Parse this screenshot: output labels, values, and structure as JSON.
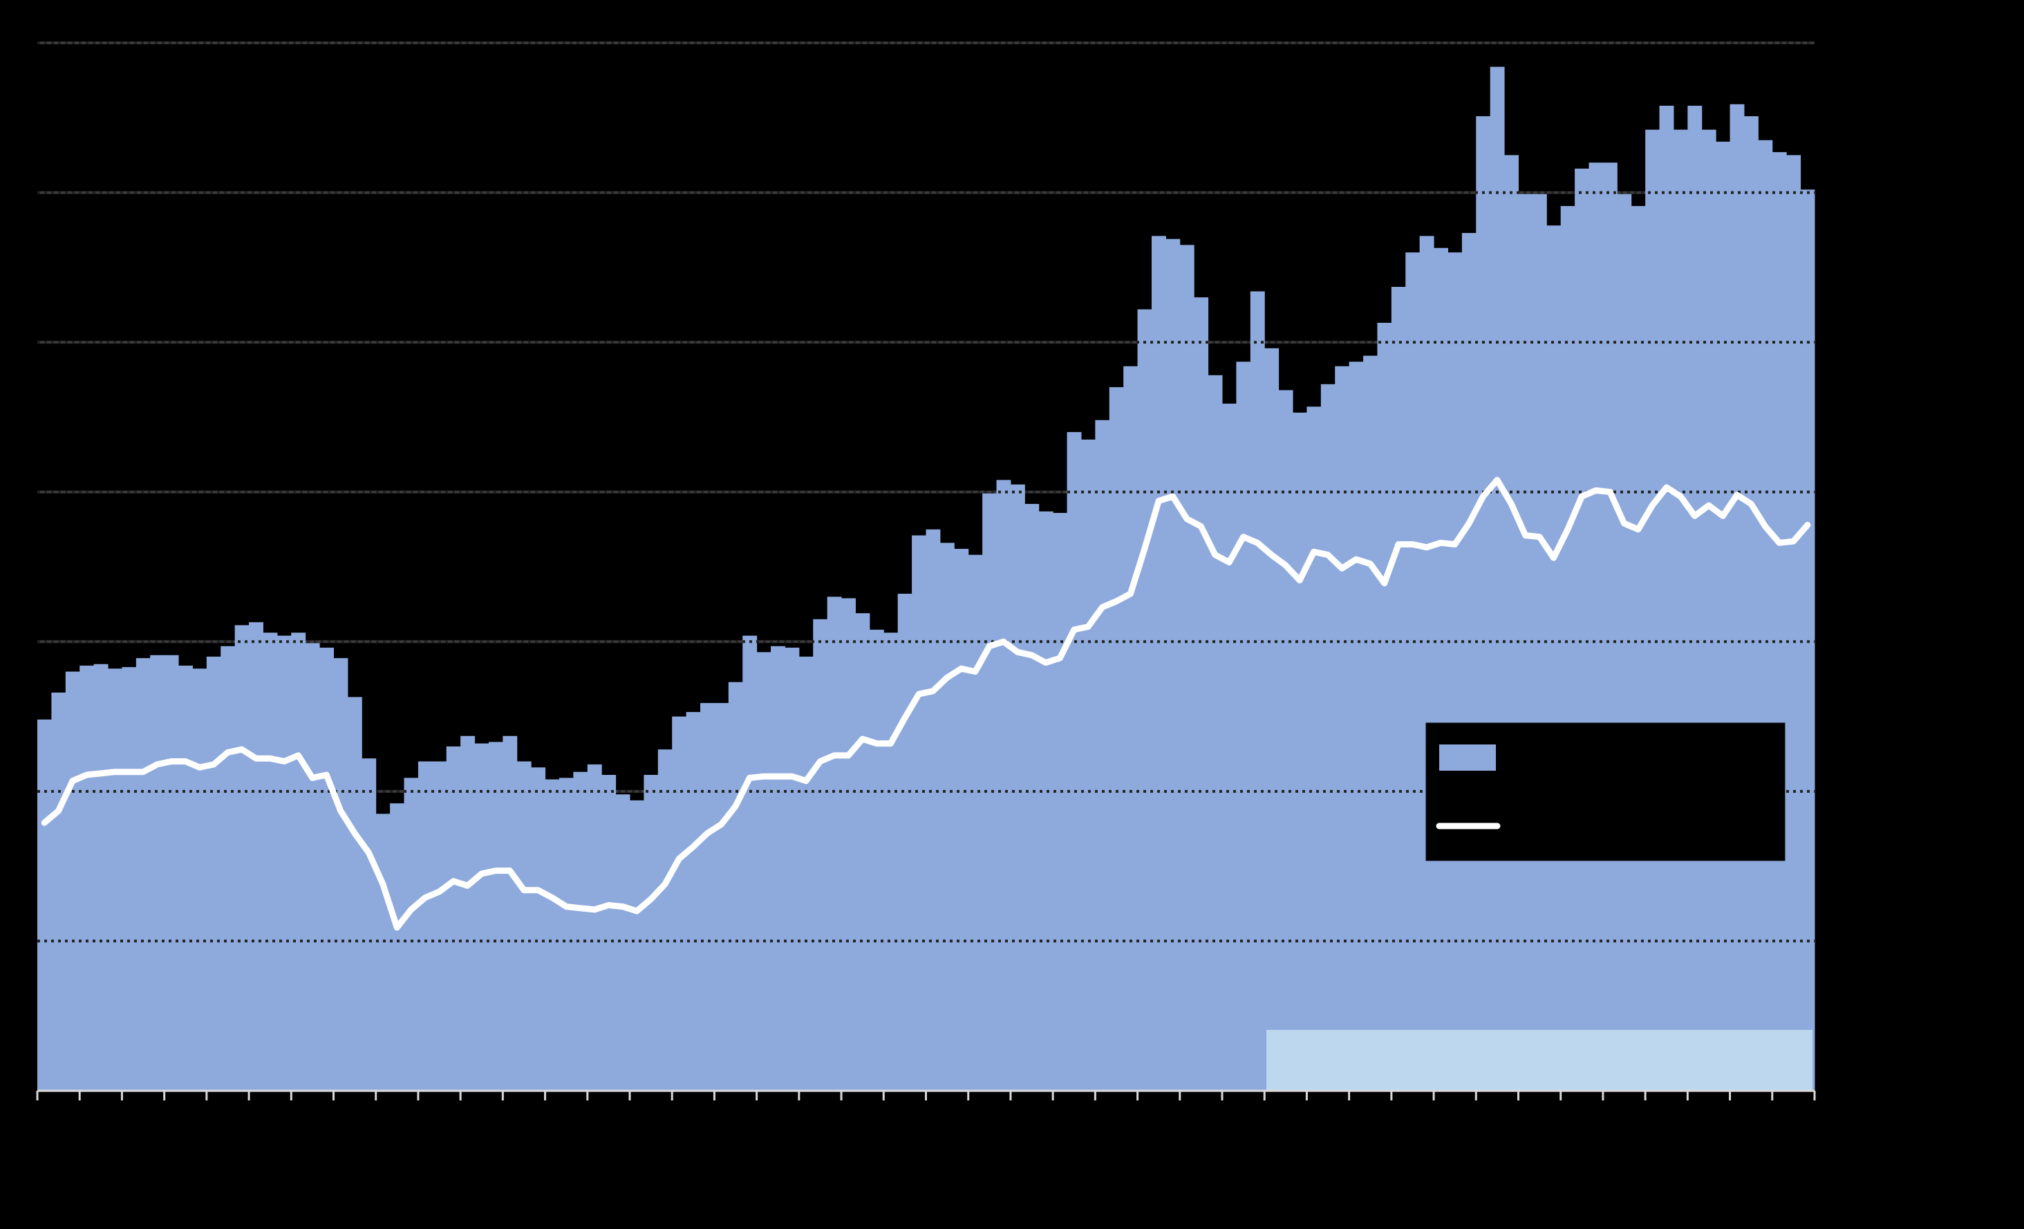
{
  "chart_data": {
    "type": "bar",
    "categories": [
      null,
      null,
      null,
      null,
      null,
      null,
      null,
      null,
      null,
      null,
      null,
      null,
      null,
      null,
      null,
      null,
      null,
      null,
      null,
      null,
      null,
      null,
      null,
      null,
      null,
      null,
      null,
      null,
      null,
      null,
      null,
      null,
      null,
      null,
      null,
      null,
      null,
      null,
      null,
      null,
      null,
      null,
      null,
      null,
      null,
      null,
      null,
      null,
      null,
      null,
      null,
      null,
      null,
      null,
      null,
      null,
      null,
      null,
      null,
      null,
      null,
      null,
      null,
      null,
      null,
      null,
      null,
      null,
      null,
      null,
      null,
      null,
      null,
      null,
      null,
      null,
      null,
      null,
      null,
      null,
      null,
      null,
      null,
      null,
      null,
      null,
      null,
      null,
      null,
      null,
      null,
      null,
      null,
      null,
      null,
      null,
      null,
      null,
      null,
      null,
      null,
      null,
      null,
      null,
      null,
      null,
      null,
      null,
      null,
      null,
      null,
      null,
      null,
      null,
      null,
      null,
      null,
      null,
      null,
      null,
      null,
      null,
      null,
      null,
      null,
      null
    ],
    "series": [
      {
        "type": "bar",
        "color": "#8eaadc",
        "values": [
          2.48,
          2.66,
          2.8,
          2.84,
          2.85,
          2.82,
          2.83,
          2.89,
          2.91,
          2.91,
          2.84,
          2.82,
          2.9,
          2.97,
          3.11,
          3.13,
          3.06,
          3.04,
          3.06,
          2.99,
          2.96,
          2.89,
          2.63,
          2.22,
          1.85,
          1.92,
          2.09,
          2.2,
          2.2,
          2.3,
          2.37,
          2.32,
          2.33,
          2.37,
          2.2,
          2.16,
          2.08,
          2.09,
          2.13,
          2.18,
          2.11,
          1.98,
          1.94,
          2.11,
          2.28,
          2.5,
          2.53,
          2.59,
          2.59,
          2.73,
          3.04,
          2.93,
          2.97,
          2.96,
          2.9,
          3.15,
          3.3,
          3.29,
          3.19,
          3.08,
          3.06,
          3.32,
          3.71,
          3.75,
          3.66,
          3.62,
          3.58,
          3.99,
          4.08,
          4.05,
          3.92,
          3.87,
          3.86,
          4.4,
          4.35,
          4.48,
          4.7,
          4.84,
          5.22,
          5.71,
          5.69,
          5.65,
          5.3,
          4.78,
          4.59,
          4.87,
          5.34,
          4.96,
          4.68,
          4.53,
          4.57,
          4.72,
          4.84,
          4.87,
          4.91,
          5.13,
          5.37,
          5.6,
          5.71,
          5.63,
          5.6,
          5.73,
          6.51,
          6.84,
          6.25,
          5.99,
          5.99,
          5.78,
          5.91,
          6.16,
          6.2,
          6.2,
          5.99,
          5.91,
          6.42,
          6.58,
          6.42,
          6.58,
          6.42,
          6.34,
          6.59,
          6.51,
          6.35,
          6.27,
          6.25,
          6.02
        ]
      },
      {
        "type": "line",
        "color": "#ffffff",
        "values": [
          1.79,
          1.87,
          2.07,
          2.11,
          2.12,
          2.13,
          2.13,
          2.13,
          2.18,
          2.2,
          2.2,
          2.16,
          2.18,
          2.26,
          2.28,
          2.22,
          2.22,
          2.2,
          2.24,
          2.09,
          2.11,
          1.87,
          1.72,
          1.59,
          1.38,
          1.09,
          1.21,
          1.29,
          1.33,
          1.4,
          1.37,
          1.45,
          1.47,
          1.47,
          1.34,
          1.34,
          1.29,
          1.23,
          1.22,
          1.21,
          1.24,
          1.23,
          1.2,
          1.28,
          1.38,
          1.55,
          1.63,
          1.72,
          1.78,
          1.9,
          2.09,
          2.1,
          2.1,
          2.1,
          2.07,
          2.2,
          2.24,
          2.24,
          2.35,
          2.32,
          2.32,
          2.49,
          2.65,
          2.67,
          2.76,
          2.82,
          2.8,
          2.97,
          3.0,
          2.93,
          2.91,
          2.86,
          2.89,
          3.08,
          3.1,
          3.23,
          3.27,
          3.32,
          3.62,
          3.94,
          3.97,
          3.82,
          3.77,
          3.58,
          3.53,
          3.7,
          3.66,
          3.58,
          3.51,
          3.41,
          3.6,
          3.58,
          3.49,
          3.55,
          3.52,
          3.39,
          3.65,
          3.65,
          3.63,
          3.66,
          3.65,
          3.79,
          3.97,
          4.08,
          3.92,
          3.71,
          3.7,
          3.56,
          3.75,
          3.97,
          4.01,
          4.0,
          3.79,
          3.75,
          3.91,
          4.03,
          3.97,
          3.84,
          3.91,
          3.84,
          3.98,
          3.92,
          3.77,
          3.66,
          3.67,
          3.78
        ]
      }
    ],
    "ylim": [
      0,
      7
    ],
    "yticks": [
      0,
      1,
      2,
      3,
      4,
      5,
      6,
      7
    ],
    "grid": true
  }
}
